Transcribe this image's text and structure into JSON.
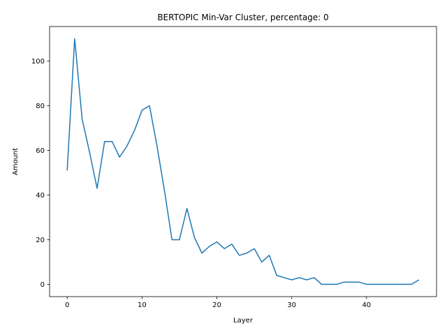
{
  "chart_data": {
    "type": "line",
    "title": "BERTOPIC Min-Var Cluster, percentage: 0",
    "xlabel": "Layer",
    "ylabel": "Amount",
    "xlim": [
      -2.35,
      49.35
    ],
    "ylim": [
      -5.5,
      115.5
    ],
    "xticks": [
      0,
      10,
      20,
      30,
      40
    ],
    "yticks": [
      0,
      20,
      40,
      60,
      80,
      100
    ],
    "grid": false,
    "legend": null,
    "series": [
      {
        "color": "#1f77b4",
        "x": [
          0,
          1,
          2,
          3,
          4,
          5,
          6,
          7,
          8,
          9,
          10,
          11,
          12,
          13,
          14,
          15,
          16,
          17,
          18,
          19,
          20,
          21,
          22,
          23,
          24,
          25,
          26,
          27,
          28,
          29,
          30,
          31,
          32,
          33,
          34,
          35,
          36,
          37,
          38,
          39,
          40,
          41,
          42,
          43,
          44,
          45,
          46,
          47
        ],
        "values": [
          51,
          110,
          74,
          59,
          43,
          64,
          64,
          57,
          62,
          69,
          78,
          80,
          62,
          42,
          20,
          20,
          34,
          21,
          14,
          17,
          19,
          16,
          18,
          13,
          14,
          16,
          10,
          13,
          4,
          3,
          2,
          3,
          2,
          3,
          0,
          0,
          0,
          1,
          1,
          1,
          0,
          0,
          0,
          0,
          0,
          0,
          0,
          2
        ]
      }
    ]
  }
}
